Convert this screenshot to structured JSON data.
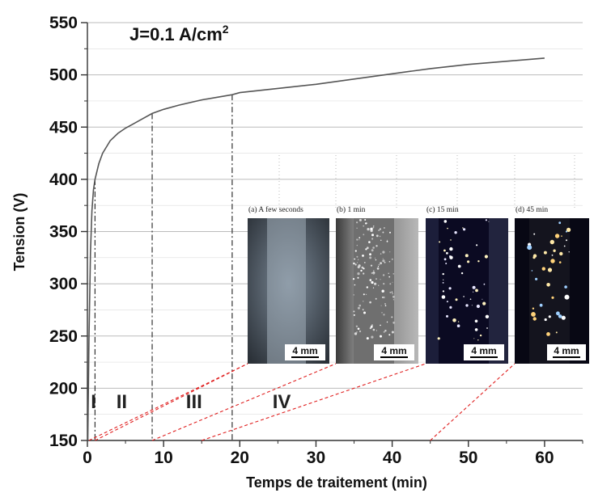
{
  "chart_data": {
    "type": "line",
    "title": "",
    "annotation": "J=0.1 A/cm",
    "annotation_sup": "2",
    "xlabel": "Temps de traitement (min)",
    "ylabel": "Tension (V)",
    "xlim": [
      0,
      65
    ],
    "ylim": [
      150,
      550
    ],
    "xticks": [
      0,
      10,
      20,
      30,
      40,
      50,
      60
    ],
    "yticks": [
      150,
      200,
      250,
      300,
      350,
      400,
      450,
      500,
      550
    ],
    "grid": "horizontal",
    "series": [
      {
        "x": [
          0.05,
          0.2,
          0.4,
          0.6,
          0.8,
          1,
          1.5,
          2,
          3,
          4,
          5,
          6,
          7,
          8.5,
          10,
          12,
          15,
          19,
          20,
          25,
          30,
          35,
          40,
          45,
          50,
          55,
          60
        ],
        "y": [
          150,
          245,
          330,
          370,
          390,
          400,
          415,
          425,
          437,
          444,
          449,
          453,
          457,
          463,
          467,
          471,
          476,
          481,
          483,
          487,
          491,
          496,
          501,
          506,
          510,
          513,
          516
        ]
      }
    ],
    "phase_boundaries": [
      1,
      8.5,
      19
    ],
    "phases": [
      {
        "label": "I",
        "x": 0.8
      },
      {
        "label": "II",
        "x": 4.5
      },
      {
        "label": "III",
        "x": 14
      },
      {
        "label": "IV",
        "x": 25.5
      }
    ],
    "insets": [
      {
        "caption": "(a) A few seconds",
        "scale": "4 mm",
        "x": 1
      },
      {
        "caption": "(b) 1 min",
        "scale": "4 mm",
        "x": 8.5
      },
      {
        "caption": "(c) 15 min",
        "scale": "4 mm",
        "x": 15
      },
      {
        "caption": "(d) 45 min",
        "scale": "4 mm",
        "x": 45
      }
    ]
  },
  "colors": {
    "line": "#555555",
    "grid": "#bbbbbb",
    "divider": "#333333",
    "leader": "#e02020"
  }
}
